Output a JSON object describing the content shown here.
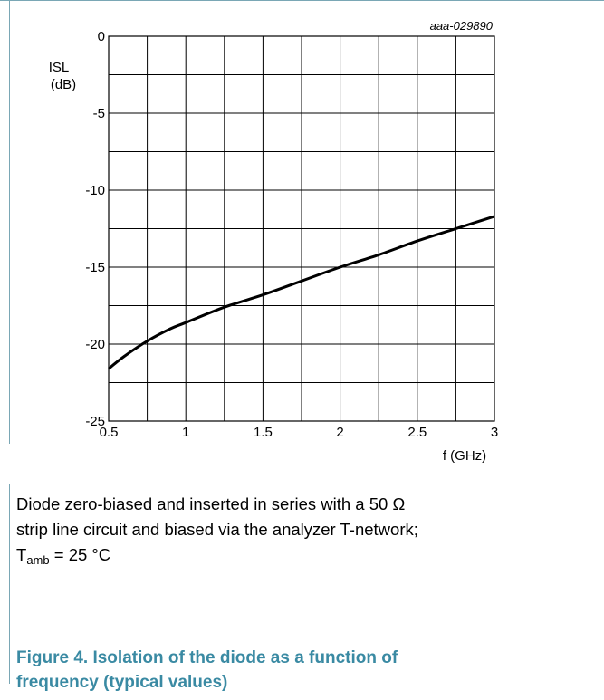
{
  "chart_data": {
    "type": "line",
    "code": "aaa-029890",
    "ylabel_line1": "ISL",
    "ylabel_line2": "(dB)",
    "xlabel": "f (GHz)",
    "xlim": [
      0.5,
      3
    ],
    "ylim": [
      -25,
      0
    ],
    "x_ticks": [
      "0.5",
      "1",
      "1.5",
      "2",
      "2.5",
      "3"
    ],
    "y_ticks": [
      "0",
      "-5",
      "-10",
      "-15",
      "-20",
      "-25"
    ],
    "grid": true,
    "series": [
      {
        "x": [
          0.5,
          0.6,
          0.75,
          0.9,
          1.0,
          1.25,
          1.5,
          1.75,
          2.0,
          2.25,
          2.5,
          2.75,
          3.0
        ],
        "y": [
          -21.6,
          -20.8,
          -19.8,
          -19.0,
          -18.6,
          -17.6,
          -16.8,
          -15.9,
          -15.0,
          -14.2,
          -13.3,
          -12.5,
          -11.7
        ]
      }
    ]
  },
  "caption": {
    "line1": "Diode zero-biased and inserted in series with a 50 Ω",
    "line2": "strip line circuit and biased via the analyzer T-network;",
    "t_main": "T",
    "t_sub": "amb",
    "t_rest": " = 25 °C"
  },
  "figure_title": {
    "line1": "Figure 4.  Isolation of the diode as a function of",
    "line2": "frequency (typical values)"
  }
}
